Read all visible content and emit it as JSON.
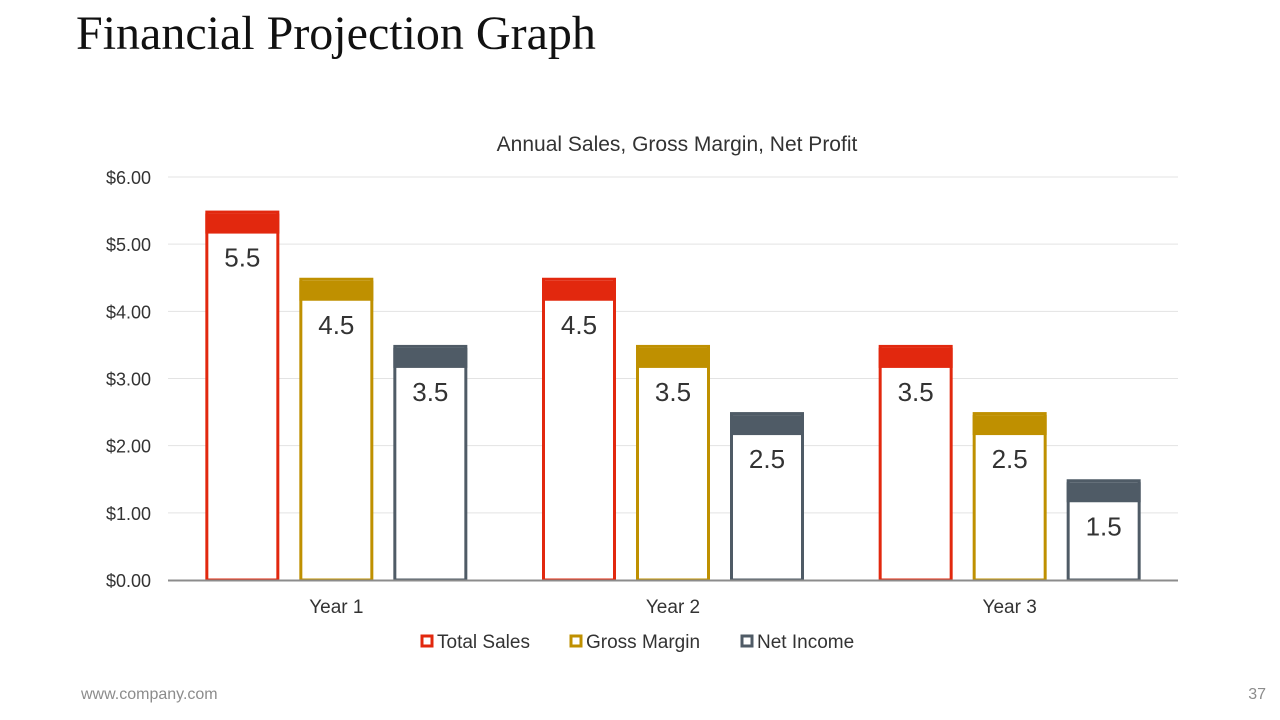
{
  "slide": {
    "title": "Financial Projection Graph",
    "footer_url": "www.company.com",
    "page_number": "37"
  },
  "chart_data": {
    "type": "bar",
    "title": "Annual Sales, Gross Margin, Net Profit",
    "categories": [
      "Year 1",
      "Year 2",
      "Year 3"
    ],
    "series": [
      {
        "name": "Total Sales",
        "color": "#e2280e",
        "values": [
          5.5,
          4.5,
          3.5
        ]
      },
      {
        "name": "Gross Margin",
        "color": "#bf9000",
        "values": [
          4.5,
          3.5,
          2.5
        ]
      },
      {
        "name": "Net Income",
        "color": "#4f5b66",
        "values": [
          3.5,
          2.5,
          1.5
        ]
      }
    ],
    "ylim": [
      0,
      6
    ],
    "yticks": [
      0,
      1,
      2,
      3,
      4,
      5,
      6
    ],
    "ytick_labels": [
      "$0.00",
      "$1.00",
      "$2.00",
      "$3.00",
      "$4.00",
      "$5.00",
      "$6.00"
    ],
    "data_labels": [
      [
        "5.5",
        "4.5",
        "3.5"
      ],
      [
        "4.5",
        "3.5",
        "2.5"
      ],
      [
        "3.5",
        "2.5",
        "1.5"
      ]
    ],
    "grid": true,
    "legend_position": "bottom",
    "xlabel": "",
    "ylabel": ""
  }
}
